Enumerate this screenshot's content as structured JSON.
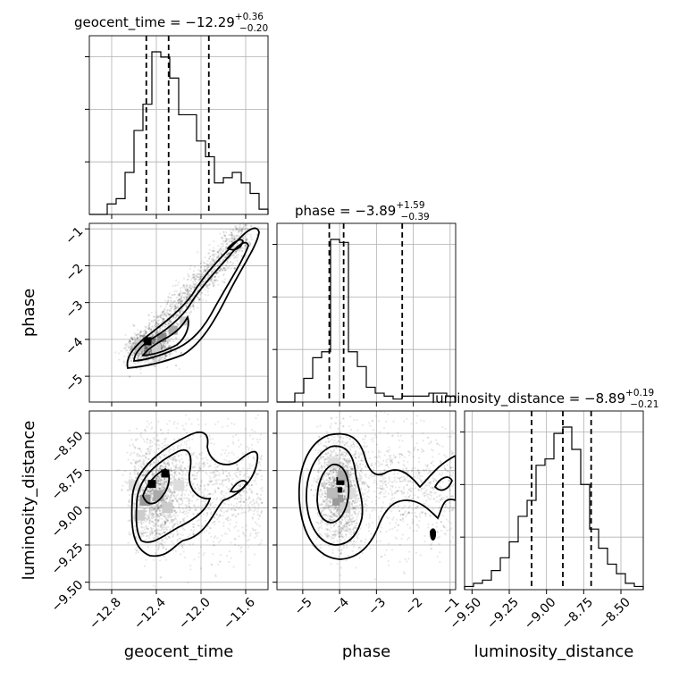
{
  "chart_data": {
    "type": "corner",
    "parameters": [
      "geocent_time",
      "phase",
      "luminosity_distance"
    ],
    "titles": [
      {
        "base": "geocent_time = −12.29",
        "sup": "+0.36",
        "sub": "−0.20"
      },
      {
        "base": "phase = −3.89",
        "sup": "+1.59",
        "sub": "−0.39"
      },
      {
        "base": "luminosity_distance = −8.89",
        "sup": "+0.19",
        "sub": "−0.21"
      }
    ],
    "ranges": [
      [
        -13.0,
        -11.4
      ],
      [
        -5.7,
        -0.85
      ],
      [
        -9.55,
        -8.35
      ]
    ],
    "ticks": [
      [
        {
          "v": -12.8,
          "label": "−12.8"
        },
        {
          "v": -12.4,
          "label": "−12.4"
        },
        {
          "v": -12.0,
          "label": "−12.0"
        },
        {
          "v": -11.6,
          "label": "−11.6"
        }
      ],
      [
        {
          "v": -5,
          "label": "−5"
        },
        {
          "v": -4,
          "label": "−4"
        },
        {
          "v": -3,
          "label": "−3"
        },
        {
          "v": -2,
          "label": "−2"
        },
        {
          "v": -1,
          "label": "−1"
        }
      ],
      [
        {
          "v": -9.5,
          "label": "−9.50"
        },
        {
          "v": -9.25,
          "label": "−9.25"
        },
        {
          "v": -9.0,
          "label": "−9.00"
        },
        {
          "v": -8.75,
          "label": "−8.75"
        },
        {
          "v": -8.5,
          "label": "−8.50"
        }
      ]
    ],
    "quantiles": [
      [
        -12.49,
        -12.29,
        -11.93
      ],
      [
        -4.28,
        -3.89,
        -2.3
      ],
      [
        -9.1,
        -8.89,
        -8.7
      ]
    ],
    "histograms": [
      {
        "edges": [
          -13.0,
          -12.92,
          -12.84,
          -12.76,
          -12.68,
          -12.6,
          -12.52,
          -12.44,
          -12.36,
          -12.28,
          -12.2,
          -12.12,
          -12.04,
          -11.96,
          -11.88,
          -11.8,
          -11.72,
          -11.64,
          -11.56,
          -11.48,
          -11.4
        ],
        "counts": [
          0,
          0,
          2,
          3,
          8,
          16,
          21,
          31,
          30,
          26,
          19,
          19,
          14,
          11,
          6,
          7,
          8,
          6,
          4,
          1
        ]
      },
      {
        "edges": [
          -5.7,
          -5.4575,
          -5.215,
          -4.9725,
          -4.73,
          -4.4875,
          -4.245,
          -4.0025,
          -3.76,
          -3.5175,
          -3.275,
          -3.0325,
          -2.79,
          -2.5475,
          -2.305,
          -2.0625,
          -1.82,
          -1.5775,
          -1.335,
          -1.0925,
          -0.85
        ],
        "counts": [
          0,
          0,
          3,
          8,
          15,
          17,
          55,
          54,
          17,
          12,
          5,
          3,
          2,
          1,
          2,
          2,
          2,
          3,
          3,
          2
        ]
      },
      {
        "edges": [
          -9.55,
          -9.49,
          -9.43,
          -9.37,
          -9.31,
          -9.25,
          -9.19,
          -9.13,
          -9.07,
          -9.01,
          -8.95,
          -8.89,
          -8.83,
          -8.77,
          -8.71,
          -8.65,
          -8.59,
          -8.53,
          -8.47,
          -8.41,
          -8.35
        ],
        "counts": [
          1,
          2,
          3,
          6,
          10,
          15,
          23,
          28,
          39,
          41,
          49,
          51,
          44,
          33,
          19,
          13,
          8,
          5,
          2,
          1
        ]
      }
    ],
    "grid": true
  }
}
